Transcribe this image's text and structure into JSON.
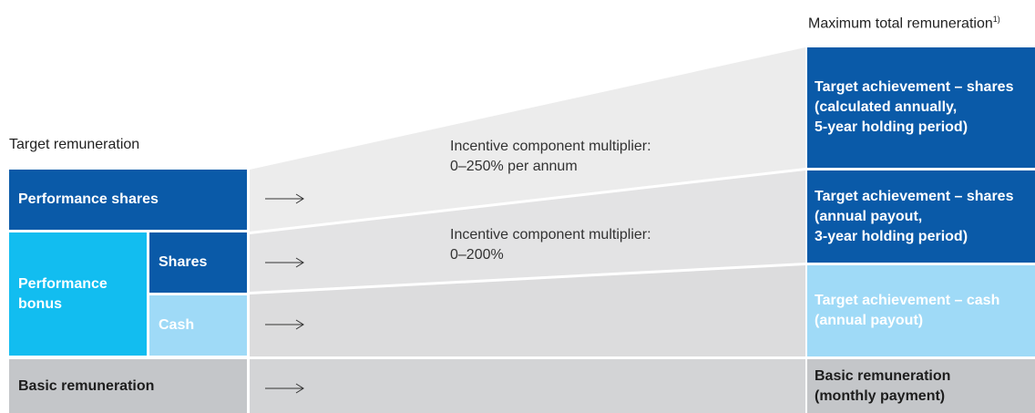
{
  "headings": {
    "max_title": "Maximum total remuneration",
    "max_footnote": "1)",
    "target_title": "Target remuneration"
  },
  "left": {
    "performance_shares": "Performance shares",
    "performance_bonus": "Performance bonus",
    "shares": "Shares",
    "cash": "Cash",
    "basic": "Basic remuneration"
  },
  "multipliers": {
    "shares_label": "Incentive component multiplier:",
    "shares_value": "0–250% per annum",
    "bonus_label": "Incentive component multiplier:",
    "bonus_value": "0–200%"
  },
  "right": {
    "shares_long": [
      "Target achievement – shares",
      "(calculated annually,",
      "5-year holding period)"
    ],
    "shares_annual": [
      "Target achievement – shares",
      "(annual payout,",
      "3-year holding period)"
    ],
    "cash": [
      "Target achievement – cash",
      "(annual payout)"
    ],
    "basic": [
      "Basic remuneration",
      "(monthly payment)"
    ]
  },
  "colors": {
    "dark_blue": "#0a5aa8",
    "cyan": "#12bdf0",
    "light_blue": "#9fdaf7",
    "grey": "#c4c6c9"
  },
  "icons": [
    "arrow-right-icon"
  ]
}
